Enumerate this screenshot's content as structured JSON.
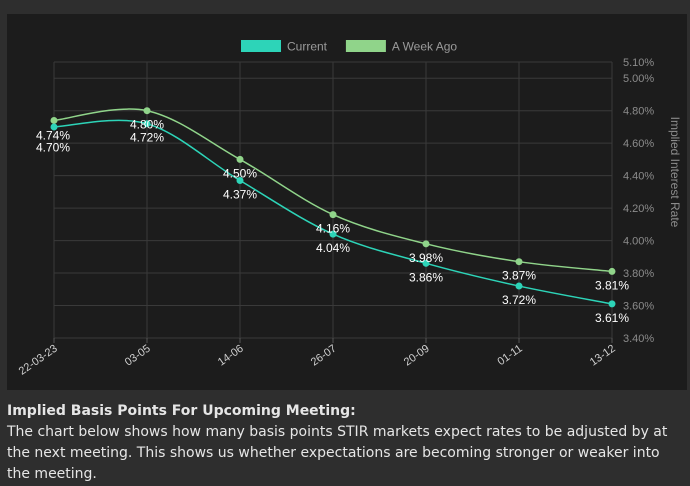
{
  "chart_data": {
    "type": "line",
    "categories": [
      "22-03-23",
      "03-05",
      "14-06",
      "26-07",
      "20-09",
      "01-11",
      "13-12"
    ],
    "series": [
      {
        "name": "Current",
        "color": "#2dd4b8",
        "values": [
          4.7,
          4.72,
          4.37,
          4.04,
          3.86,
          3.72,
          3.61
        ],
        "labels": [
          "4.70%",
          "4.72%",
          "4.37%",
          "4.04%",
          "3.86%",
          "3.72%",
          "3.61%"
        ]
      },
      {
        "name": "A Week Ago",
        "color": "#90d48a",
        "values": [
          4.74,
          4.8,
          4.5,
          4.16,
          3.98,
          3.87,
          3.81
        ],
        "labels": [
          "4.74%",
          "4.80%",
          "4.50%",
          "4.16%",
          "3.98%",
          "3.87%",
          "3.81%"
        ]
      }
    ],
    "y_axis": {
      "label": "Implied Interest Rate",
      "position": "right",
      "ticks": [
        3.4,
        3.6,
        3.8,
        4.0,
        4.2,
        4.4,
        4.6,
        4.8,
        5.0,
        5.1
      ],
      "tick_labels": [
        "3.40%",
        "3.60%",
        "3.80%",
        "4.00%",
        "4.20%",
        "4.40%",
        "4.60%",
        "4.80%",
        "5.00%",
        "5.10%"
      ],
      "ylim": [
        3.4,
        5.1
      ]
    },
    "legend_position": "top-center",
    "grid": true
  },
  "text": {
    "heading": "Implied Basis Points For Upcoming Meeting:",
    "body": "The chart below shows how many basis points STIR markets expect rates to be adjusted by at the next meeting. This shows us whether expectations are becoming stronger or weaker into the meeting."
  }
}
